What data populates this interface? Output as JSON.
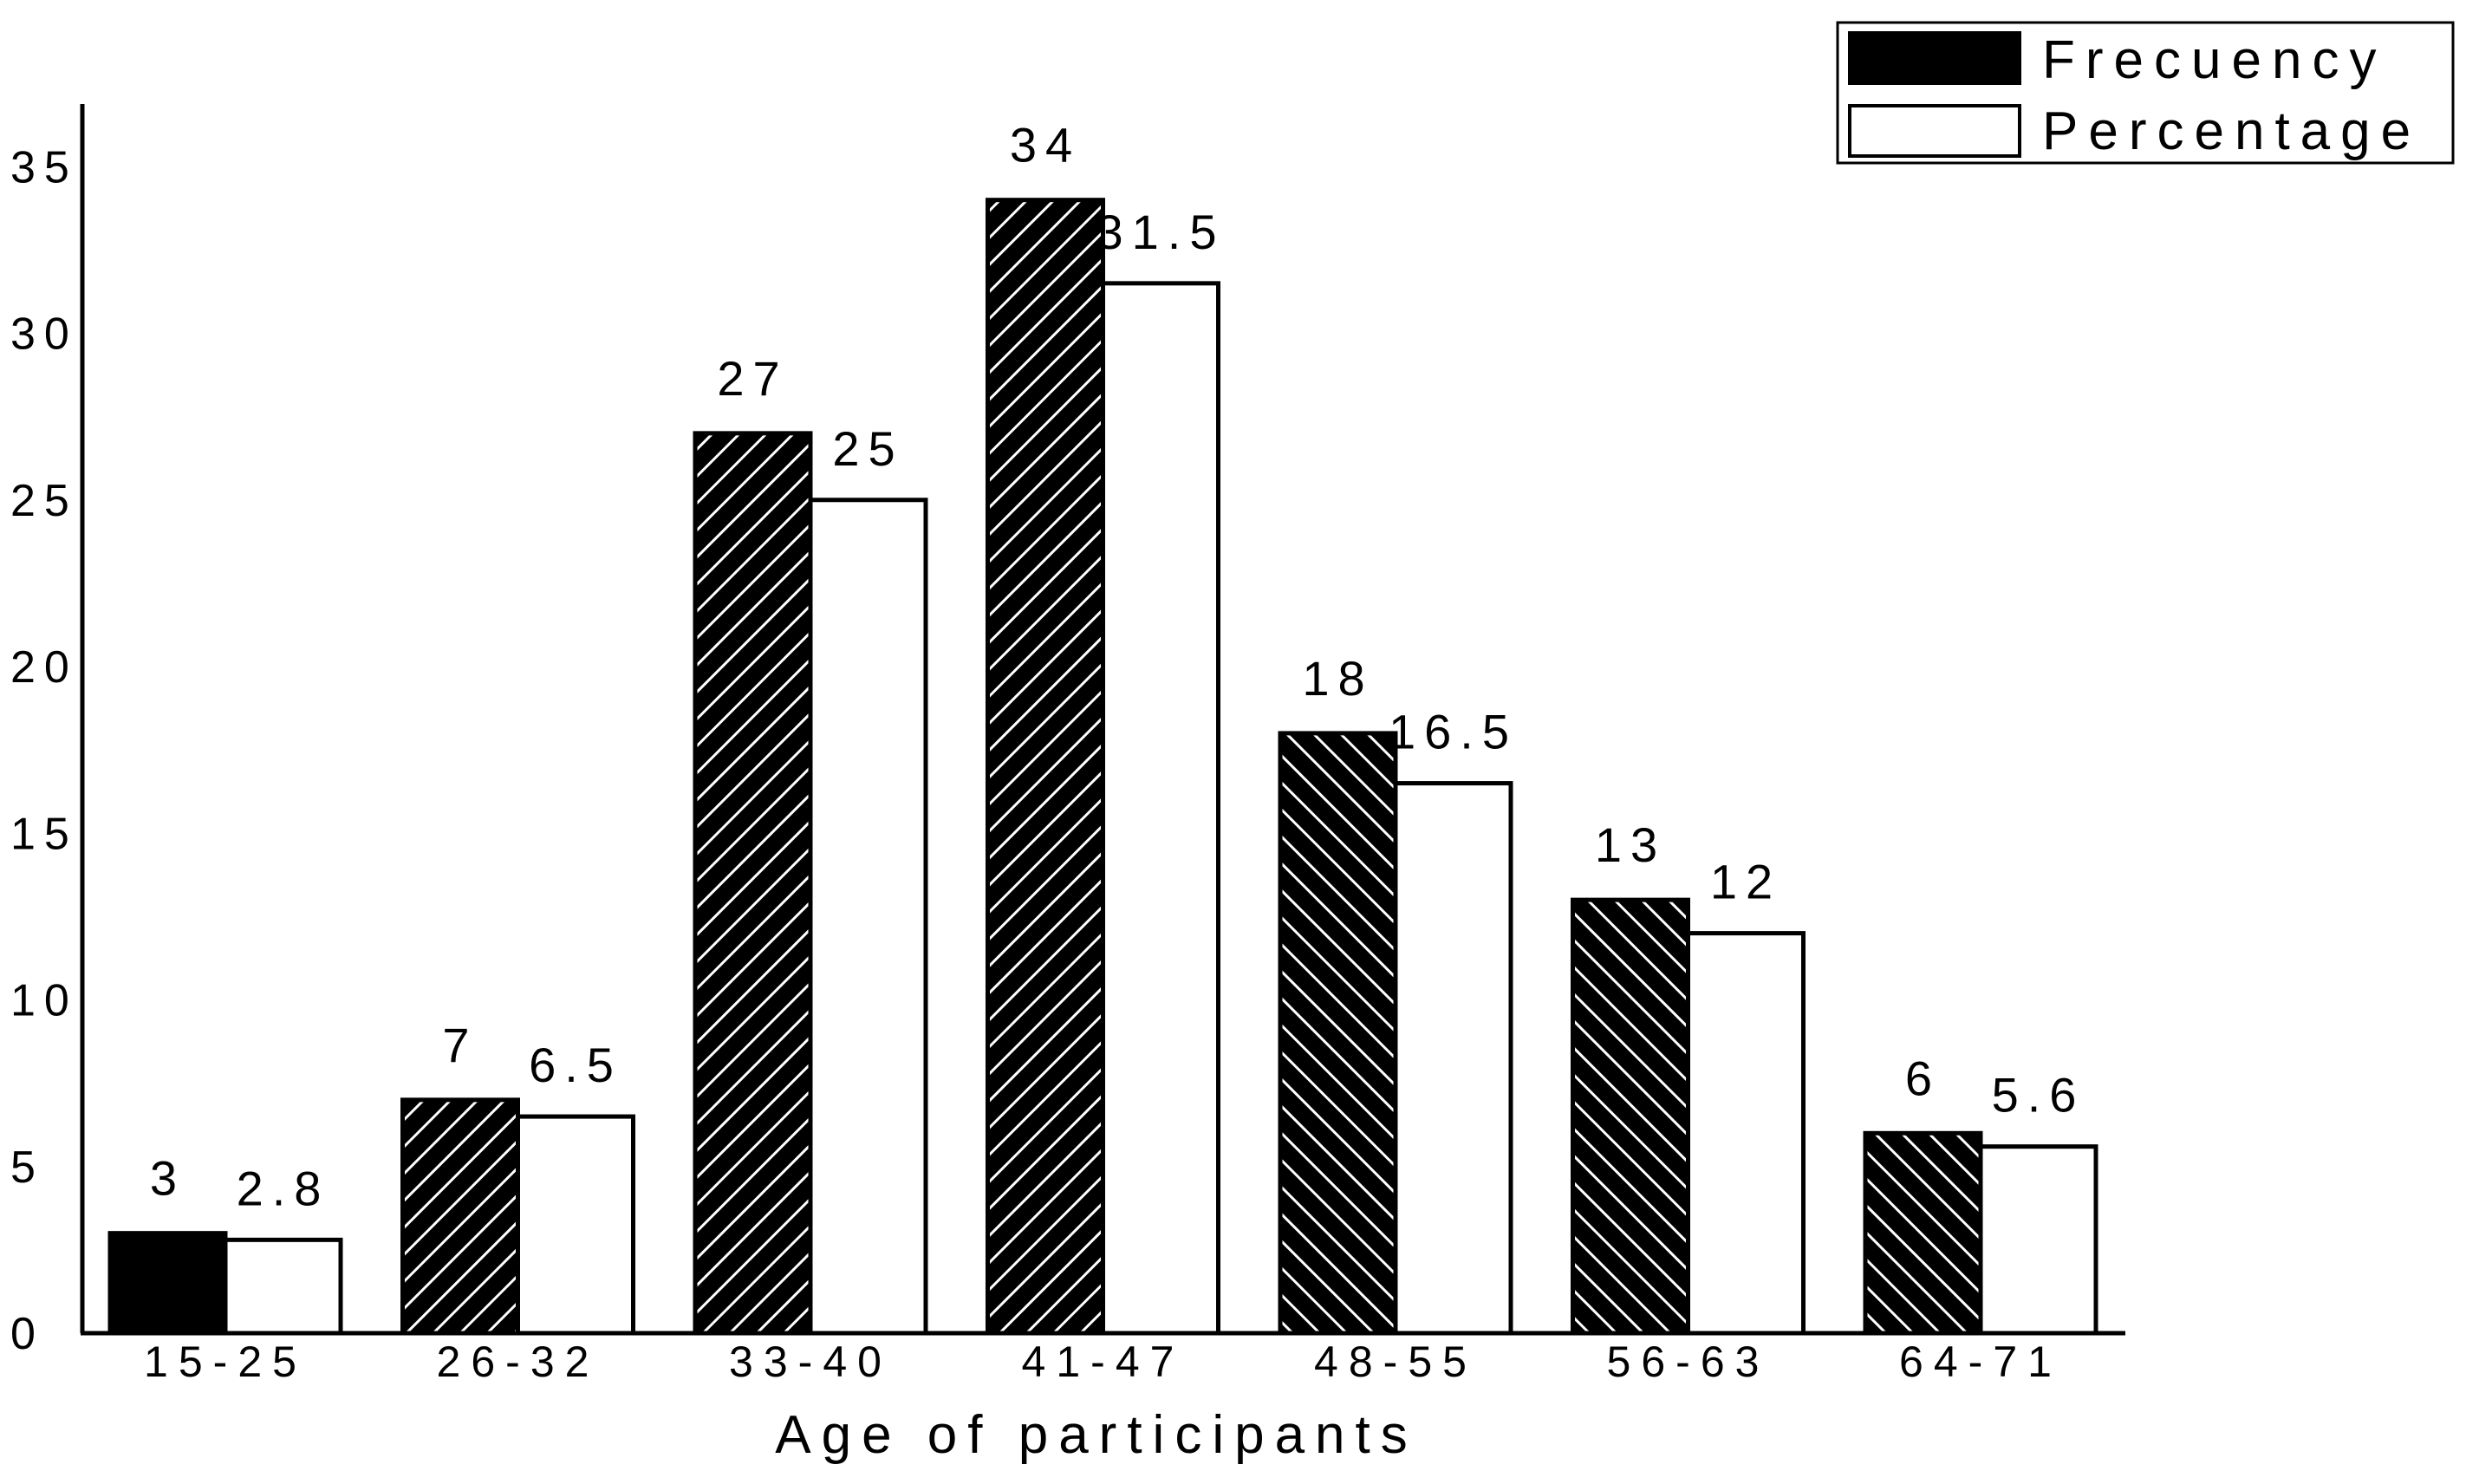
{
  "chart_data": {
    "type": "bar",
    "title": "",
    "xlabel": "Age of participants",
    "ylabel": "",
    "ylim": [
      0,
      35
    ],
    "yticks": [
      0,
      5,
      10,
      15,
      20,
      25,
      30,
      35
    ],
    "grid": false,
    "legend_position": "top-right",
    "categories": [
      "15-25",
      "26-32",
      "33-40",
      "41-47",
      "48-55",
      "56-63",
      "64-71"
    ],
    "series": [
      {
        "name": "Frecuency",
        "values": [
          3,
          7,
          27,
          34,
          18,
          13,
          6
        ],
        "labels": [
          "3",
          "7",
          "27",
          "34",
          "18",
          "13",
          "6"
        ],
        "color": "#000000"
      },
      {
        "name": "Percentage",
        "values": [
          2.8,
          6.5,
          25,
          31.5,
          16.5,
          12,
          5.6
        ],
        "labels": [
          "2.8",
          "6.5",
          "25",
          "31.5",
          "16.5",
          "12",
          "5.6"
        ],
        "color": "#ffffff"
      }
    ]
  }
}
